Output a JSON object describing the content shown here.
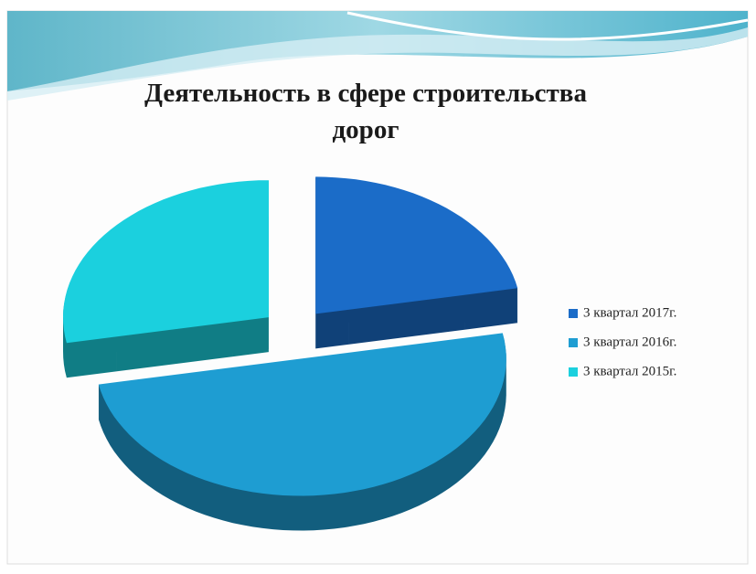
{
  "chart_data": {
    "type": "pie",
    "title": "Деятельность в сфере строительства дорог",
    "categories": [
      "3 квартал 2017г.",
      "3 квартал 2016г.",
      "3 квартал 2015г."
    ],
    "values": [
      22,
      50,
      28
    ],
    "colors": [
      "#1b6cc8",
      "#1e9dd2",
      "#1bd0de"
    ],
    "legend": "right"
  }
}
